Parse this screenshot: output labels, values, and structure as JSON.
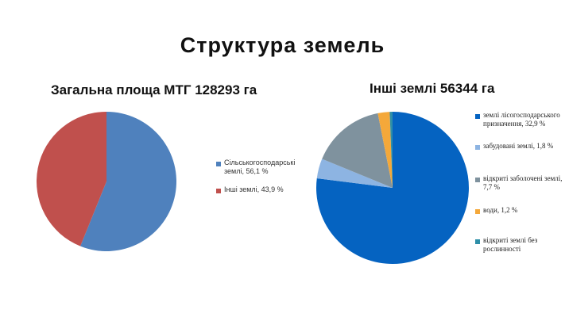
{
  "page_title": "Структура земель",
  "chart_data": [
    {
      "type": "pie",
      "title": "Загальна площа МТГ 128293 га",
      "slices": [
        {
          "label": "Сільськогосподарські землі, 56,1 %",
          "value": 56.1,
          "color": "#4F81BD"
        },
        {
          "label": "Інші землі, 43,9 %",
          "value": 43.9,
          "color": "#C0504D"
        }
      ]
    },
    {
      "type": "pie",
      "title": "Інші землі 56344  га",
      "slices": [
        {
          "label": "землі лісогосподарського призначення, 32,9  %",
          "value": 77.0,
          "color": "#0563C1"
        },
        {
          "label": "забудовані землі, 1,8 %",
          "value": 4.2,
          "color": "#8DB4E2"
        },
        {
          "label": "відкриті заболочені землі,   7,7  %",
          "value": 15.7,
          "color": "#7F929E"
        },
        {
          "label": "води,  1,2  %",
          "value": 2.5,
          "color": "#F4A83A"
        },
        {
          "label": "відкриті  землі без рослинності",
          "value": 0.6,
          "color": "#2E8FA8"
        }
      ]
    }
  ]
}
